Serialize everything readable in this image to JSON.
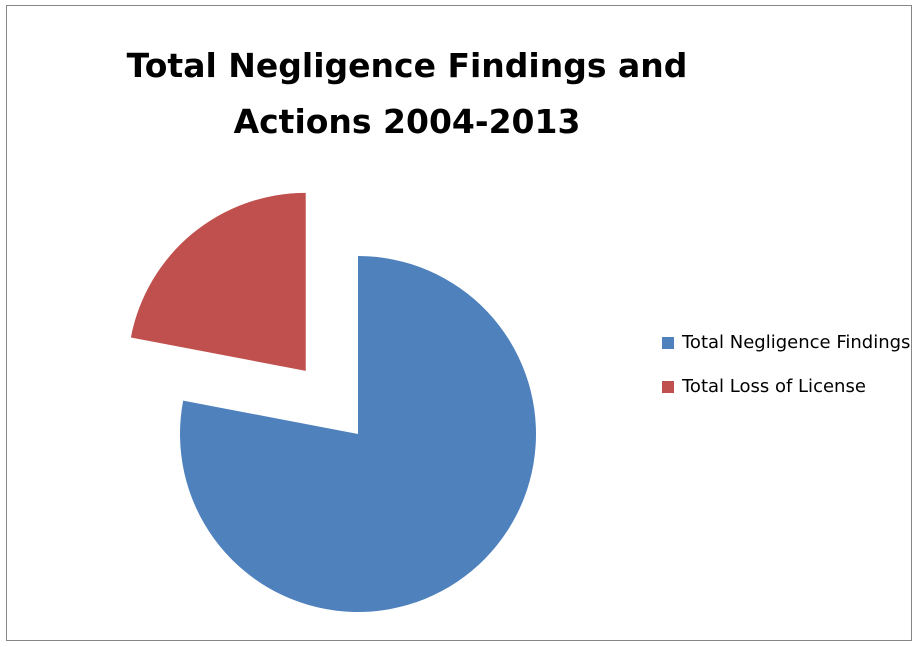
{
  "chart_data": {
    "type": "pie",
    "title": "Total Negligence Findings and Actions 2004-2013",
    "title_lines": [
      "Total Negligence Findings and",
      "Actions 2004-2013"
    ],
    "slices": [
      {
        "label": "Total Negligence Findings",
        "value": 78,
        "color": "#4F81BD",
        "exploded": false
      },
      {
        "label": "Total Loss of License",
        "value": 22,
        "color": "#C0504D",
        "exploded": true
      }
    ],
    "legend_position": "right"
  }
}
